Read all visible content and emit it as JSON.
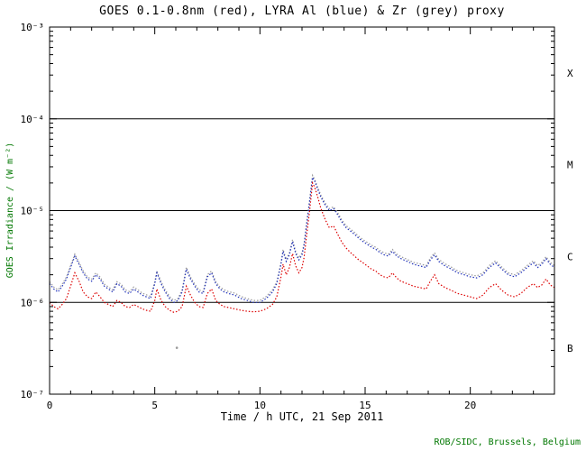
{
  "title": "GOES 0.1-0.8nm (red), LYRA Al (blue) & Zr (grey) proxy",
  "xlabel": "Time / h UTC, 21 Sep 2011",
  "ylabel": "GOES Irradiance / (W m⁻²)",
  "credit": "ROB/SIDC, Brussels, Belgium",
  "colors": {
    "axis": "#000000",
    "accent_text": "#007700",
    "goes_red": "#dd0000",
    "lyra_al_blue": "#2233bb",
    "lyra_zr_grey": "#9a9a9a"
  },
  "chart_data": {
    "type": "line",
    "title": "GOES 0.1-0.8nm (red), LYRA Al (blue) & Zr (grey) proxy",
    "xlabel": "Time / h UTC, 21 Sep 2011",
    "ylabel": "GOES Irradiance / (W m⁻²)",
    "x_range": [
      0,
      24
    ],
    "x_major_ticks": [
      0,
      5,
      10,
      15,
      20
    ],
    "x_minor_step": 1,
    "y_scale": "log",
    "y_log_range": [
      -7,
      -3
    ],
    "y_tick_exps": [
      -3,
      -4,
      -5,
      -6,
      -7
    ],
    "y_tick_labels": [
      "10⁻³",
      "10⁻⁴",
      "10⁻⁵",
      "10⁻⁶",
      "10⁻⁷"
    ],
    "class_line_exps": [
      -4,
      -5,
      -6
    ],
    "class_labels": [
      {
        "label": "X",
        "exp": -3.5
      },
      {
        "label": "M",
        "exp": -4.5
      },
      {
        "label": "C",
        "exp": -5.5
      },
      {
        "label": "B",
        "exp": -6.5
      }
    ],
    "grid": false,
    "legend": "in-title",
    "x": [
      0,
      0.2,
      0.4,
      0.6,
      0.8,
      1.0,
      1.2,
      1.4,
      1.6,
      1.8,
      2.0,
      2.2,
      2.4,
      2.6,
      2.8,
      3.0,
      3.2,
      3.4,
      3.6,
      3.8,
      4.0,
      4.2,
      4.4,
      4.6,
      4.8,
      5.0,
      5.1,
      5.3,
      5.5,
      5.7,
      5.9,
      6.1,
      6.3,
      6.5,
      6.7,
      6.9,
      7.1,
      7.3,
      7.5,
      7.7,
      7.9,
      8.1,
      8.3,
      8.5,
      8.8,
      9.1,
      9.4,
      9.7,
      10.0,
      10.3,
      10.6,
      10.8,
      11.0,
      11.1,
      11.25,
      11.4,
      11.55,
      11.7,
      11.85,
      12.0,
      12.1,
      12.2,
      12.35,
      12.5,
      12.6,
      12.75,
      12.9,
      13.1,
      13.3,
      13.5,
      13.7,
      13.9,
      14.1,
      14.3,
      14.5,
      14.7,
      14.9,
      15.1,
      15.3,
      15.5,
      15.7,
      15.9,
      16.1,
      16.3,
      16.5,
      16.7,
      17.0,
      17.3,
      17.6,
      17.9,
      18.1,
      18.3,
      18.5,
      18.8,
      19.1,
      19.4,
      19.7,
      20.0,
      20.3,
      20.6,
      20.9,
      21.2,
      21.5,
      21.8,
      22.1,
      22.4,
      22.7,
      23.0,
      23.2,
      23.4,
      23.6,
      23.8,
      24.0
    ],
    "series": [
      {
        "name": "LYRA Zr proxy",
        "color": "#9a9a9a",
        "values": [
          1.68e-06,
          1.47e-06,
          1.37e-06,
          1.58e-06,
          1.89e-06,
          2.52e-06,
          3.36e-06,
          2.73e-06,
          2.2e-06,
          1.89e-06,
          1.79e-06,
          2.1e-06,
          1.89e-06,
          1.58e-06,
          1.47e-06,
          1.37e-06,
          1.68e-06,
          1.58e-06,
          1.37e-06,
          1.31e-06,
          1.47e-06,
          1.37e-06,
          1.26e-06,
          1.21e-06,
          1.16e-06,
          1.68e-06,
          2.2e-06,
          1.68e-06,
          1.37e-06,
          1.16e-06,
          1.05e-06,
          1.1e-06,
          1.37e-06,
          2.42e-06,
          1.89e-06,
          1.58e-06,
          1.37e-06,
          1.31e-06,
          2e-06,
          2.2e-06,
          1.68e-06,
          1.47e-06,
          1.37e-06,
          1.31e-06,
          1.26e-06,
          1.16e-06,
          1.1e-06,
          1.05e-06,
          1.05e-06,
          1.16e-06,
          1.37e-06,
          1.68e-06,
          2.73e-06,
          3.78e-06,
          2.94e-06,
          3.47e-06,
          4.83e-06,
          3.57e-06,
          3.05e-06,
          3.47e-06,
          4.41e-06,
          6.83e-06,
          1.26e-05,
          2.42e-05,
          2.2e-05,
          1.79e-05,
          1.47e-05,
          1.21e-05,
          1.05e-05,
          1.1e-05,
          9.45e-06,
          7.88e-06,
          6.83e-06,
          6.3e-06,
          5.78e-06,
          5.25e-06,
          4.83e-06,
          4.52e-06,
          4.2e-06,
          3.99e-06,
          3.68e-06,
          3.47e-06,
          3.36e-06,
          3.78e-06,
          3.36e-06,
          3.15e-06,
          2.94e-06,
          2.73e-06,
          2.63e-06,
          2.52e-06,
          3.05e-06,
          3.47e-06,
          2.94e-06,
          2.63e-06,
          2.42e-06,
          2.2e-06,
          2.1e-06,
          2e-06,
          1.94e-06,
          2.1e-06,
          2.52e-06,
          2.84e-06,
          2.42e-06,
          2.1e-06,
          2e-06,
          2.2e-06,
          2.52e-06,
          2.84e-06,
          2.52e-06,
          2.73e-06,
          3.15e-06,
          2.73e-06,
          2.52e-06
        ]
      },
      {
        "name": "LYRA Al proxy",
        "color": "#2233bb",
        "values": [
          1.6e-06,
          1.4e-06,
          1.3e-06,
          1.5e-06,
          1.8e-06,
          2.4e-06,
          3.2e-06,
          2.6e-06,
          2.1e-06,
          1.8e-06,
          1.7e-06,
          2e-06,
          1.8e-06,
          1.5e-06,
          1.4e-06,
          1.3e-06,
          1.6e-06,
          1.5e-06,
          1.3e-06,
          1.25e-06,
          1.4e-06,
          1.3e-06,
          1.2e-06,
          1.15e-06,
          1.1e-06,
          1.6e-06,
          2.1e-06,
          1.6e-06,
          1.3e-06,
          1.1e-06,
          1e-06,
          1.05e-06,
          1.3e-06,
          2.3e-06,
          1.8e-06,
          1.5e-06,
          1.3e-06,
          1.25e-06,
          1.9e-06,
          2.1e-06,
          1.6e-06,
          1.4e-06,
          1.3e-06,
          1.25e-06,
          1.2e-06,
          1.1e-06,
          1.05e-06,
          1e-06,
          1e-06,
          1.1e-06,
          1.3e-06,
          1.6e-06,
          2.6e-06,
          3.6e-06,
          2.8e-06,
          3.3e-06,
          4.6e-06,
          3.4e-06,
          2.9e-06,
          3.3e-06,
          4.2e-06,
          6.5e-06,
          1.2e-05,
          2.3e-05,
          2.1e-05,
          1.7e-05,
          1.4e-05,
          1.15e-05,
          1e-05,
          1.05e-05,
          9e-06,
          7.5e-06,
          6.5e-06,
          6e-06,
          5.5e-06,
          5e-06,
          4.6e-06,
          4.3e-06,
          4e-06,
          3.8e-06,
          3.5e-06,
          3.3e-06,
          3.2e-06,
          3.6e-06,
          3.2e-06,
          3e-06,
          2.8e-06,
          2.6e-06,
          2.5e-06,
          2.4e-06,
          2.9e-06,
          3.3e-06,
          2.8e-06,
          2.5e-06,
          2.3e-06,
          2.1e-06,
          2e-06,
          1.9e-06,
          1.85e-06,
          2e-06,
          2.4e-06,
          2.7e-06,
          2.3e-06,
          2e-06,
          1.9e-06,
          2.1e-06,
          2.4e-06,
          2.7e-06,
          2.4e-06,
          2.6e-06,
          3e-06,
          2.6e-06,
          2.4e-06
        ]
      },
      {
        "name": "GOES 0.1-0.8nm",
        "color": "#dd0000",
        "values": [
          1e-06,
          9e-07,
          8.5e-07,
          9.5e-07,
          1.1e-06,
          1.5e-06,
          2.1e-06,
          1.7e-06,
          1.3e-06,
          1.15e-06,
          1.1e-06,
          1.3e-06,
          1.15e-06,
          1e-06,
          9.5e-07,
          9e-07,
          1.05e-06,
          1e-06,
          9e-07,
          8.8e-07,
          9.5e-07,
          9e-07,
          8.5e-07,
          8.2e-07,
          8e-07,
          1.05e-06,
          1.4e-06,
          1.05e-06,
          9e-07,
          8.2e-07,
          7.8e-07,
          8e-07,
          9e-07,
          1.5e-06,
          1.2e-06,
          1e-06,
          9e-07,
          8.8e-07,
          1.25e-06,
          1.4e-06,
          1.05e-06,
          9.5e-07,
          9e-07,
          8.8e-07,
          8.5e-07,
          8.2e-07,
          8e-07,
          7.9e-07,
          8e-07,
          8.5e-07,
          9.5e-07,
          1.15e-06,
          1.9e-06,
          2.6e-06,
          2e-06,
          2.4e-06,
          3.4e-06,
          2.5e-06,
          2.1e-06,
          2.4e-06,
          3.1e-06,
          5e-06,
          9.5e-06,
          2e-05,
          1.8e-05,
          1.4e-05,
          1.05e-05,
          8e-06,
          6.5e-06,
          6.8e-06,
          5.5e-06,
          4.5e-06,
          3.9e-06,
          3.5e-06,
          3.2e-06,
          2.9e-06,
          2.7e-06,
          2.5e-06,
          2.3e-06,
          2.2e-06,
          2e-06,
          1.9e-06,
          1.85e-06,
          2.1e-06,
          1.85e-06,
          1.7e-06,
          1.6e-06,
          1.5e-06,
          1.45e-06,
          1.4e-06,
          1.7e-06,
          2e-06,
          1.6e-06,
          1.45e-06,
          1.35e-06,
          1.25e-06,
          1.2e-06,
          1.15e-06,
          1.1e-06,
          1.2e-06,
          1.45e-06,
          1.6e-06,
          1.35e-06,
          1.2e-06,
          1.15e-06,
          1.25e-06,
          1.45e-06,
          1.6e-06,
          1.45e-06,
          1.55e-06,
          1.8e-06,
          1.55e-06,
          1.45e-06
        ]
      }
    ],
    "stray_point": {
      "x": 6.05,
      "y": 3.2e-07,
      "color": "#9a9a9a"
    }
  }
}
